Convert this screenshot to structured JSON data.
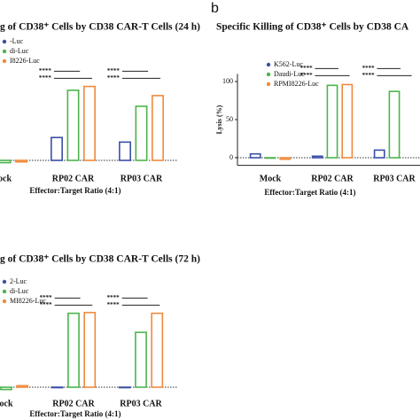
{
  "chart_data": [
    {
      "type": "bar",
      "title": "g of CD38⁺ Cells by CD38 CAR-T Cells (24 h)",
      "x_label": "Effector:Target Ratio (4:1)",
      "categories": [
        "ock",
        "RP02 CAR",
        "RP03 CAR"
      ],
      "series": [
        {
          "name": "-Luc",
          "color": "#3a4fa6",
          "values": [
            null,
            30,
            24
          ]
        },
        {
          "name": "di-Luc",
          "color": "#4cb44c",
          "values": [
            -3,
            92,
            71
          ]
        },
        {
          "name": "I8226-Luc",
          "color": "#f08a3c",
          "values": [
            -2,
            97,
            85
          ]
        }
      ],
      "significance": [
        null,
        [
          "****",
          "****"
        ],
        [
          "****",
          "****"
        ]
      ],
      "ylim": [
        -10,
        110
      ]
    },
    {
      "type": "bar",
      "panel_label": "b",
      "title": "Specific Killing of CD38⁺ Cells by CD38 CA",
      "x_label": "Effector:Target Ratio (4:1)",
      "y_label": "Lysis (%)",
      "categories": [
        "Mock",
        "RP02 CAR",
        "RP03 CAR"
      ],
      "series": [
        {
          "name": "K562-Luc",
          "color": "#3a4fa6",
          "values": [
            5,
            2,
            10
          ]
        },
        {
          "name": "Daudi-Luc",
          "color": "#4cb44c",
          "values": [
            0,
            95,
            87
          ]
        },
        {
          "name": "RPMI8226-Luc",
          "color": "#f08a3c",
          "values": [
            -2,
            96,
            null
          ]
        }
      ],
      "significance": [
        null,
        [
          "****",
          "****"
        ],
        [
          "****",
          "****"
        ]
      ],
      "ylim": [
        -10,
        110
      ],
      "yticks": [
        0,
        50,
        100
      ]
    },
    {
      "type": "bar",
      "title": "g of CD38⁺ Cells by CD38 CAR-T Cells (72 h)",
      "x_label": "Effector:Target Ratio (4:1)",
      "categories": [
        "ock",
        "RP02 CAR",
        "RP03 CAR"
      ],
      "series": [
        {
          "name": "2-Luc",
          "color": "#3a4fa6",
          "values": [
            null,
            0,
            0
          ]
        },
        {
          "name": "di-Luc",
          "color": "#4cb44c",
          "values": [
            -3,
            97,
            72
          ]
        },
        {
          "name": "MI8226-Luc",
          "color": "#f08a3c",
          "values": [
            2,
            98,
            97
          ]
        }
      ],
      "significance": [
        null,
        [
          "****",
          "****"
        ],
        [
          "****",
          "****"
        ]
      ],
      "ylim": [
        -10,
        110
      ]
    }
  ]
}
